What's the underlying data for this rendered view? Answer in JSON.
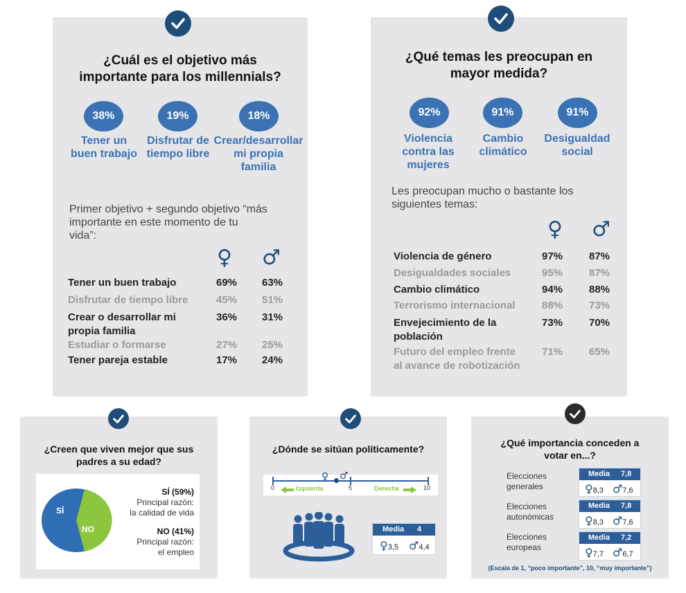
{
  "p1": {
    "title_l1": "¿Cuál es el objetivo más",
    "title_l2": "importante para los millennials?",
    "circles": [
      {
        "pct": "38%",
        "l1": "Tener un",
        "l2": "buen trabajo",
        "l3": ""
      },
      {
        "pct": "19%",
        "l1": "Disfrutar de",
        "l2": "tiempo libre",
        "l3": ""
      },
      {
        "pct": "18%",
        "l1": "Crear/desarrollar",
        "l2": "mi propia",
        "l3": "familia"
      }
    ],
    "note_l1": "Primer objetivo + segundo objetivo “más",
    "note_l2": "importante en este momento de tu",
    "note_l3": "vida”:",
    "female": "♀",
    "male": "♂",
    "rows": [
      {
        "l1": "Tener un buen trabajo",
        "l2": "",
        "f": "69%",
        "m": "63%"
      },
      {
        "l1": "Disfrutar de tiempo libre",
        "l2": "",
        "f": "45%",
        "m": "51%"
      },
      {
        "l1": "Crear o desarrollar mi",
        "l2": "propia familia",
        "f": "36%",
        "m": "31%"
      },
      {
        "l1": "Estudiar o formarse",
        "l2": "",
        "f": "27%",
        "m": "25%"
      },
      {
        "l1": "Tener pareja estable",
        "l2": "",
        "f": "17%",
        "m": "24%"
      }
    ]
  },
  "p2": {
    "title_l1": "¿Qué temas les preocupan en",
    "title_l2": "mayor medida?",
    "circles": [
      {
        "pct": "92%",
        "l1": "Violencia",
        "l2": "contra las",
        "l3": "mujeres"
      },
      {
        "pct": "91%",
        "l1": "Cambio",
        "l2": "climático",
        "l3": ""
      },
      {
        "pct": "91%",
        "l1": "Desigualdad",
        "l2": "social",
        "l3": ""
      }
    ],
    "note_l1": "Les preocupan mucho o bastante los",
    "note_l2": "siguientes temas:",
    "female": "♀",
    "male": "♂",
    "rows": [
      {
        "l1": "Violencia de género",
        "l2": "",
        "f": "97%",
        "m": "87%"
      },
      {
        "l1": "Desigualdades sociales",
        "l2": "",
        "f": "95%",
        "m": "87%"
      },
      {
        "l1": "Cambio climático",
        "l2": "",
        "f": "94%",
        "m": "88%"
      },
      {
        "l1": "Terrorismo internacional",
        "l2": "",
        "f": "88%",
        "m": "73%"
      },
      {
        "l1": "Envejecimiento de la",
        "l2": "población",
        "f": "73%",
        "m": "70%"
      },
      {
        "l1": "Futuro del empleo frente",
        "l2": "al avance de robotización",
        "f": "71%",
        "m": "65%"
      }
    ]
  },
  "p3": {
    "title_l1": "¿Creen que viven mejor que sus",
    "title_l2": "padres a su edad?",
    "pie": {
      "si_pct": 59,
      "no_pct": 41,
      "si_label": "SÍ",
      "no_label": "NO",
      "si_color": "#2f6db5",
      "no_color": "#8cc63e"
    },
    "si_head": "SÍ (59%)",
    "si_l1": "Principal razón:",
    "si_l2": "la calidad de vida",
    "no_head": "NO (41%)",
    "no_l1": "Principal razón:",
    "no_l2": "el empleo"
  },
  "p4": {
    "title": "¿Dónde se sitúan políticamente?",
    "scale": {
      "min": "0",
      "mid": "5",
      "max": "10",
      "left": "Izquierda",
      "right": "Derecha",
      "female_pos": 3.5,
      "male_pos": 4.4,
      "mean_pos": 4
    },
    "media_label": "Media",
    "media_value": "4",
    "female_value": "3,5",
    "male_value": "4,4",
    "female": "♀",
    "male": "♂"
  },
  "p5": {
    "title_l1": "¿Qué importancia conceden a",
    "title_l2": "votar en...?",
    "items": [
      {
        "l1": "Elecciones",
        "l2": "generales",
        "media_label": "Media",
        "media": "7,8",
        "f": "8,3",
        "m": "7,6"
      },
      {
        "l1": "Elecciones",
        "l2": "autonómicas",
        "media_label": "Media",
        "media": "7,8",
        "f": "8,3",
        "m": "7,6"
      },
      {
        "l1": "Elecciones",
        "l2": "europeas",
        "media_label": "Media",
        "media": "7,2",
        "f": "7,7",
        "m": "6,7"
      }
    ],
    "female": "♀",
    "male": "♂",
    "footnote": "(Escala de 1, “poco importante”, 10, “muy importante”)"
  }
}
